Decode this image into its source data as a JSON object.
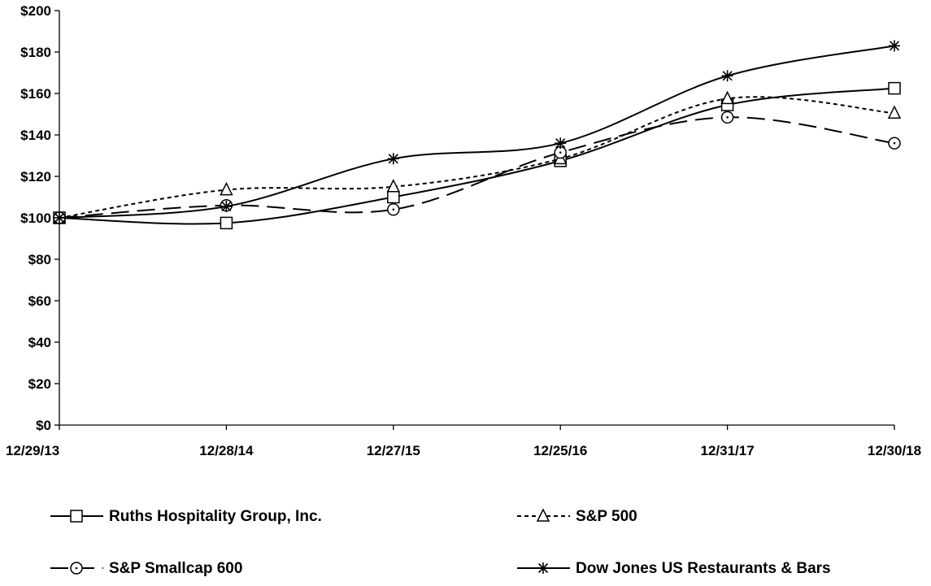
{
  "chart_data": {
    "type": "line",
    "title": "",
    "xlabel": "",
    "ylabel": "",
    "categories": [
      "12/29/13",
      "12/28/14",
      "12/27/15",
      "12/25/16",
      "12/31/17",
      "12/30/18"
    ],
    "ylim": [
      0,
      200
    ],
    "yticks": [
      0,
      20,
      40,
      60,
      80,
      100,
      120,
      140,
      160,
      180,
      200
    ],
    "ytick_labels": [
      "$0",
      "$20",
      "$40",
      "$60",
      "$80",
      "$100",
      "$120",
      "$140",
      "$160",
      "$180",
      "$200"
    ],
    "grid": false,
    "legend_position": "bottom",
    "series": [
      {
        "name": "Ruths Hospitality Group, Inc.",
        "marker": "square",
        "dash": "solid",
        "values": [
          100,
          97.5,
          110,
          127.5,
          154.5,
          162.5
        ]
      },
      {
        "name": "S&P 500",
        "marker": "triangle",
        "dash": "short-dash",
        "values": [
          100,
          113.5,
          115,
          128.5,
          157.5,
          150.5
        ]
      },
      {
        "name": "S&P Smallcap 600",
        "marker": "circle",
        "dash": "long-dash",
        "values": [
          100,
          106,
          104,
          131.5,
          148.5,
          136
        ]
      },
      {
        "name": "Dow Jones US Restaurants & Bars",
        "marker": "asterisk",
        "dash": "solid",
        "values": [
          100,
          105.5,
          128.5,
          136,
          168.5,
          183
        ]
      }
    ]
  }
}
